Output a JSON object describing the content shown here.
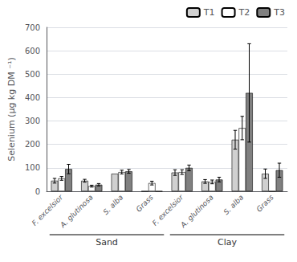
{
  "chart_data": {
    "type": "bar",
    "ylabel": "Selenium (μg kg DM ⁻¹)",
    "categories": [
      "F. excelsior",
      "A. glutinosa",
      "S. alba",
      "Grass",
      "F. excelsior",
      "A. glutinosa",
      "S. alba",
      "Grass"
    ],
    "series": [
      {
        "name": "T1",
        "color": "#d0d0d0",
        "values": [
          45,
          45,
          75,
          0,
          80,
          42,
          220,
          75
        ],
        "errors": [
          10,
          6,
          0,
          0,
          12,
          8,
          40,
          20
        ]
      },
      {
        "name": "T2",
        "color": "#ffffff",
        "values": [
          55,
          22,
          82,
          35,
          82,
          40,
          270,
          0
        ],
        "errors": [
          8,
          4,
          8,
          8,
          10,
          8,
          50,
          0
        ]
      },
      {
        "name": "T3",
        "color": "#808080",
        "values": [
          95,
          28,
          85,
          0,
          100,
          50,
          420,
          90
        ],
        "errors": [
          20,
          5,
          8,
          0,
          12,
          10,
          210,
          30
        ]
      }
    ],
    "annotations": [
      {
        "text": "Sand",
        "categories": [
          "F. excelsior",
          "A. glutinosa",
          "S. alba",
          "Grass"
        ]
      },
      {
        "text": "Clay",
        "categories": [
          "F. excelsior",
          "A. glutinosa",
          "S. alba",
          "Grass"
        ]
      }
    ],
    "ylim": [
      0,
      700
    ],
    "yticks": [
      0,
      100,
      200,
      300,
      400,
      500,
      600,
      700
    ],
    "grid": true,
    "legend": "upper right"
  }
}
